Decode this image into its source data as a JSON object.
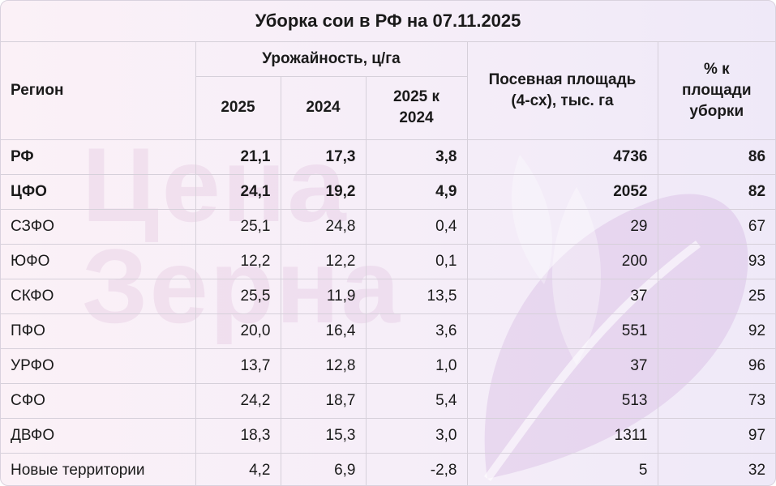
{
  "title": "Уборка сои в РФ на 07.11.2025",
  "watermark": {
    "line1": "Цена",
    "line2": "Зерна",
    "leaf_icon": "leaf-watermark-icon"
  },
  "colors": {
    "watermark": "#c88cbe",
    "border": "#d6d0da",
    "text": "#1a1a1a"
  },
  "headers": {
    "region": "Регион",
    "yield_group": "Урожайность, ц/га",
    "y2025": "2025",
    "y2024": "2024",
    "diff_line1": "2025 к",
    "diff_line2": "2024",
    "area_line1": "Посевная площадь",
    "area_line2": "(4-сх), тыс. га",
    "pct_line1": "% к площади",
    "pct_line2": "уборки"
  },
  "rows": [
    {
      "region": "РФ",
      "y2025": "21,1",
      "y2024": "17,3",
      "diff": "3,8",
      "area": "4736",
      "pct": "86",
      "bold": true
    },
    {
      "region": "ЦФО",
      "y2025": "24,1",
      "y2024": "19,2",
      "diff": "4,9",
      "area": "2052",
      "pct": "82",
      "bold": true
    },
    {
      "region": "СЗФО",
      "y2025": "25,1",
      "y2024": "24,8",
      "diff": "0,4",
      "area": "29",
      "pct": "67"
    },
    {
      "region": "ЮФО",
      "y2025": "12,2",
      "y2024": "12,2",
      "diff": "0,1",
      "area": "200",
      "pct": "93"
    },
    {
      "region": "СКФО",
      "y2025": "25,5",
      "y2024": "11,9",
      "diff": "13,5",
      "area": "37",
      "pct": "25"
    },
    {
      "region": "ПФО",
      "y2025": "20,0",
      "y2024": "16,4",
      "diff": "3,6",
      "area": "551",
      "pct": "92"
    },
    {
      "region": "УРФО",
      "y2025": "13,7",
      "y2024": "12,8",
      "diff": "1,0",
      "area": "37",
      "pct": "96"
    },
    {
      "region": "СФО",
      "y2025": "24,2",
      "y2024": "18,7",
      "diff": "5,4",
      "area": "513",
      "pct": "73"
    },
    {
      "region": "ДВФО",
      "y2025": "18,3",
      "y2024": "15,3",
      "diff": "3,0",
      "area": "1311",
      "pct": "97"
    },
    {
      "region": "Новые территории",
      "y2025": "4,2",
      "y2024": "6,9",
      "diff": "-2,8",
      "area": "5",
      "pct": "32"
    }
  ]
}
